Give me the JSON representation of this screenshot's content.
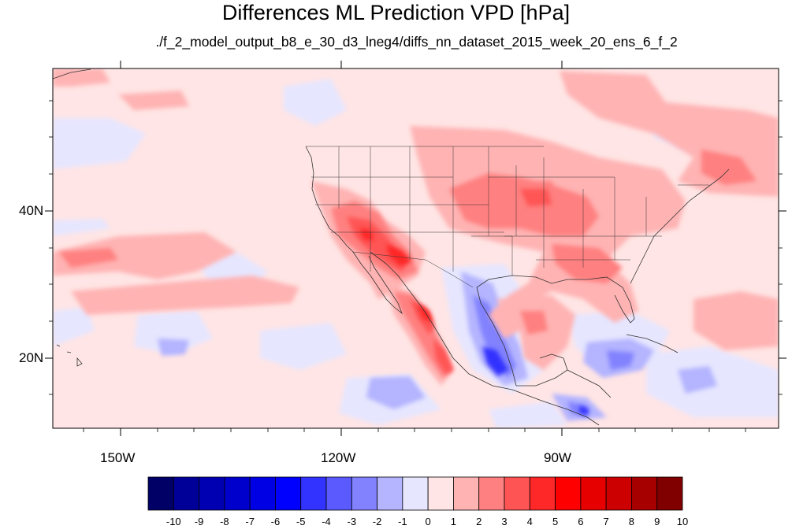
{
  "title": "Differences ML Prediction VPD [hPa]",
  "subtitle": "./f_2_model_output_b8_e_30_d3_lneg4/diffs_nn_dataset_2015_week_20_ens_6_f_2",
  "map": {
    "projection": "cylindrical-equidistant",
    "lon_range": [
      -159,
      -61
    ],
    "lat_range": [
      10,
      59
    ],
    "lat_tick_labels": [
      "40N",
      "20N"
    ],
    "lon_tick_labels": [
      "150W",
      "120W",
      "90W"
    ],
    "coastlines": true,
    "us_state_borders": true,
    "gridlines": false
  },
  "colorbar": {
    "orientation": "horizontal",
    "tick_labels": [
      "-10",
      "-9",
      "-8",
      "-7",
      "-6",
      "-5",
      "-4",
      "-3",
      "-2",
      "-1",
      "0",
      "1",
      "2",
      "3",
      "4",
      "5",
      "6",
      "7",
      "8",
      "9",
      "10"
    ],
    "colors": [
      "#000066",
      "#000099",
      "#0000b2",
      "#0000cc",
      "#0000e5",
      "#0000ff",
      "#3333ff",
      "#5a5aff",
      "#8282ff",
      "#b4b4ff",
      "#e6e6ff",
      "#ffe5e5",
      "#ffb3b3",
      "#ff8080",
      "#ff5454",
      "#ff2828",
      "#ff0000",
      "#e60000",
      "#cc0000",
      "#a60000",
      "#800000"
    ]
  }
}
